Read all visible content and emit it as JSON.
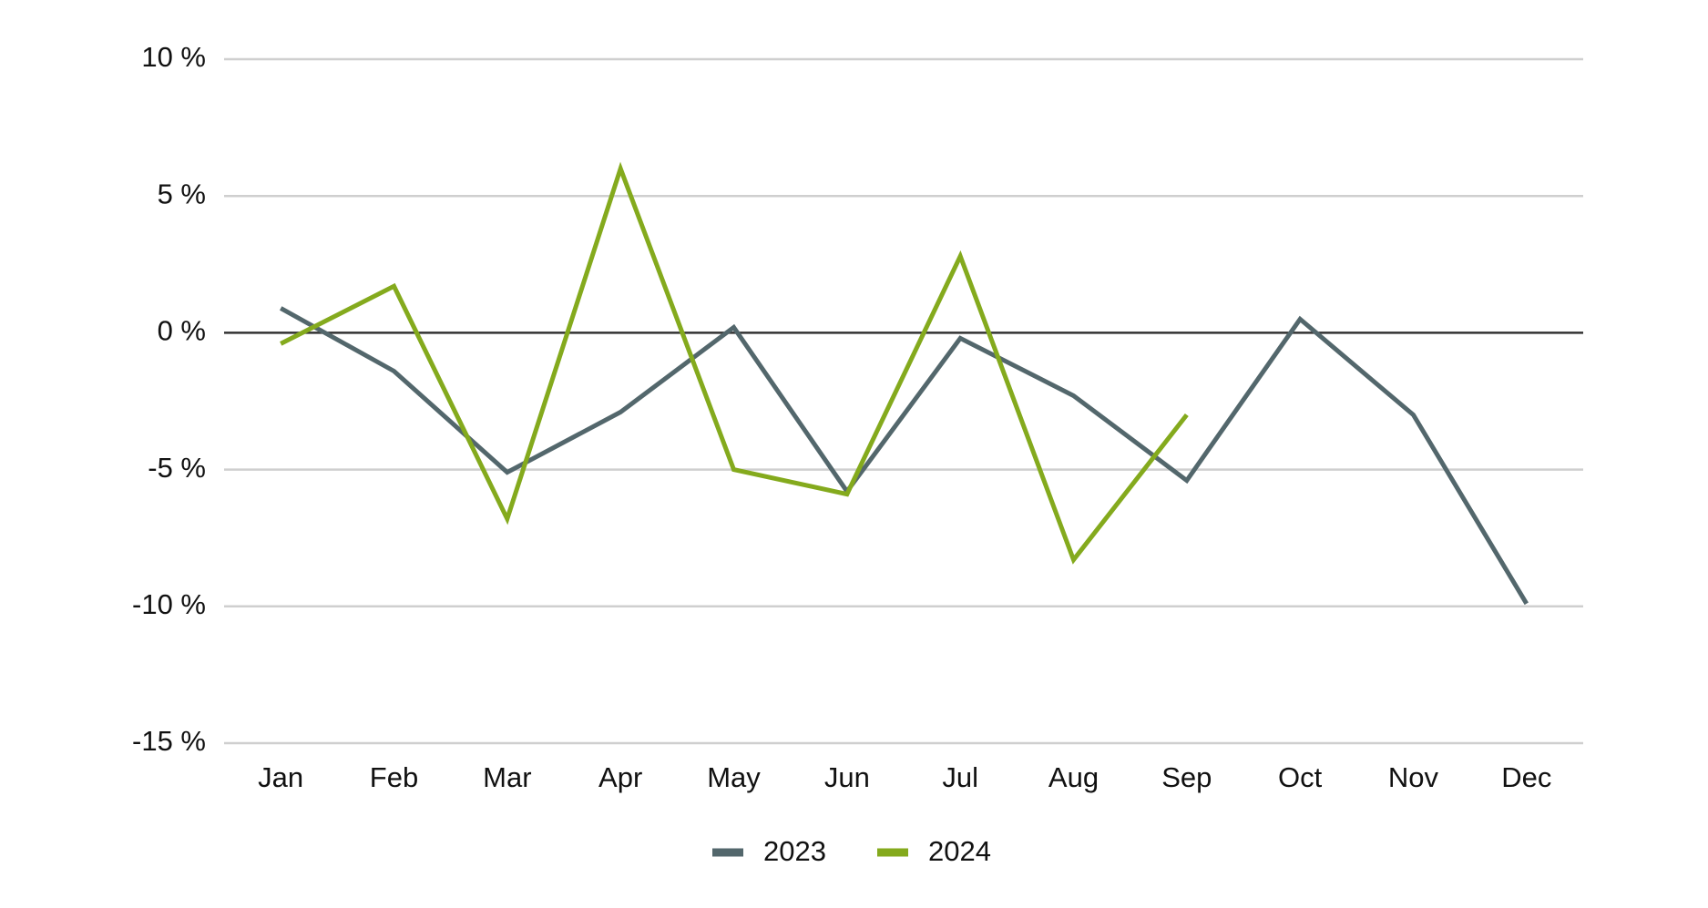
{
  "chart_data": {
    "type": "line",
    "categories": [
      "Jan",
      "Feb",
      "Mar",
      "Apr",
      "May",
      "Jun",
      "Jul",
      "Aug",
      "Sep",
      "Oct",
      "Nov",
      "Dec"
    ],
    "series": [
      {
        "name": "2023",
        "color": "#53676c",
        "values": [
          0.9,
          -1.4,
          -5.1,
          -2.9,
          0.2,
          -5.8,
          -0.2,
          -2.3,
          -5.4,
          0.5,
          -3.0,
          -9.9
        ]
      },
      {
        "name": "2024",
        "color": "#84aa1d",
        "values": [
          -0.4,
          1.7,
          -6.8,
          6.0,
          -5.0,
          -5.9,
          2.8,
          -8.3,
          -3.0,
          null,
          null,
          null
        ]
      }
    ],
    "ylim": [
      -15,
      10
    ],
    "yticks": [
      {
        "value": -15,
        "label": "-15 %"
      },
      {
        "value": -10,
        "label": "-10 %"
      },
      {
        "value": -5,
        "label": "-5 %"
      },
      {
        "value": 0,
        "label": "0 %"
      },
      {
        "value": 5,
        "label": "5 %"
      },
      {
        "value": 10,
        "label": "10 %"
      }
    ],
    "grid": true,
    "legend": "bottom"
  }
}
